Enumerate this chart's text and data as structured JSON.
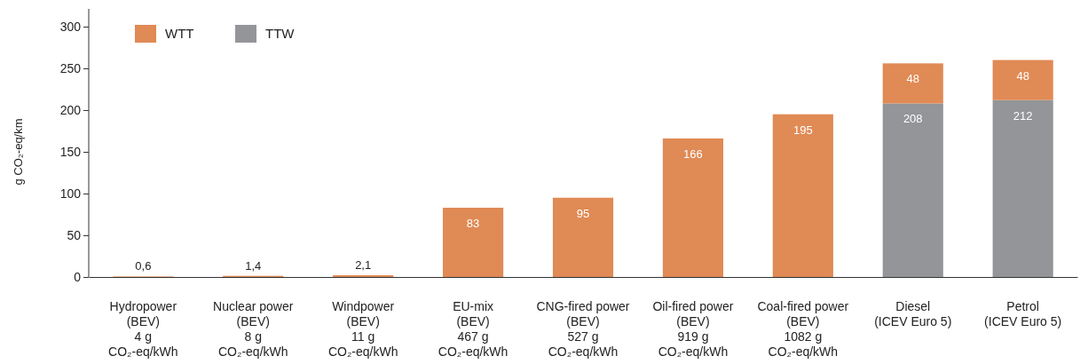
{
  "chart_data": {
    "type": "bar",
    "stacked": true,
    "ylabel": "g CO₂-eq/km",
    "categories": [
      "Hydropower\n(BEV)\n4 g\nCO₂-eq/kWh",
      "Nuclear power\n(BEV)\n8 g\nCO₂-eq/kWh",
      "Windpower\n(BEV)\n11 g\nCO₂-eq/kWh",
      "EU-mix\n(BEV)\n467 g\nCO₂-eq/kWh",
      "CNG-fired power\n(BEV)\n527 g\nCO₂-eq/kWh",
      "Oil-fired power\n(BEV)\n919 g\nCO₂-eq/kWh",
      "Coal-fired power\n(BEV)\n1082 g\nCO₂-eq/kWh",
      "Diesel\n(ICEV Euro 5)",
      "Petrol\n(ICEV Euro 5)"
    ],
    "series": [
      {
        "name": "TTW",
        "color": "#939598",
        "values": [
          null,
          null,
          null,
          null,
          null,
          null,
          null,
          208,
          212
        ],
        "value_labels": [
          null,
          null,
          null,
          null,
          null,
          null,
          null,
          "208",
          "212"
        ]
      },
      {
        "name": "WTT",
        "color": "#e08a55",
        "values": [
          0.6,
          1.4,
          2.1,
          83,
          95,
          166,
          195,
          48,
          48
        ],
        "value_labels": [
          "0,6",
          "1,4",
          "2,1",
          "83",
          "95",
          "166",
          "195",
          "48",
          "48"
        ]
      }
    ],
    "ylim": [
      0,
      300
    ],
    "yticks": [
      0,
      50,
      100,
      150,
      200,
      250,
      300
    ],
    "legend": "top left"
  }
}
